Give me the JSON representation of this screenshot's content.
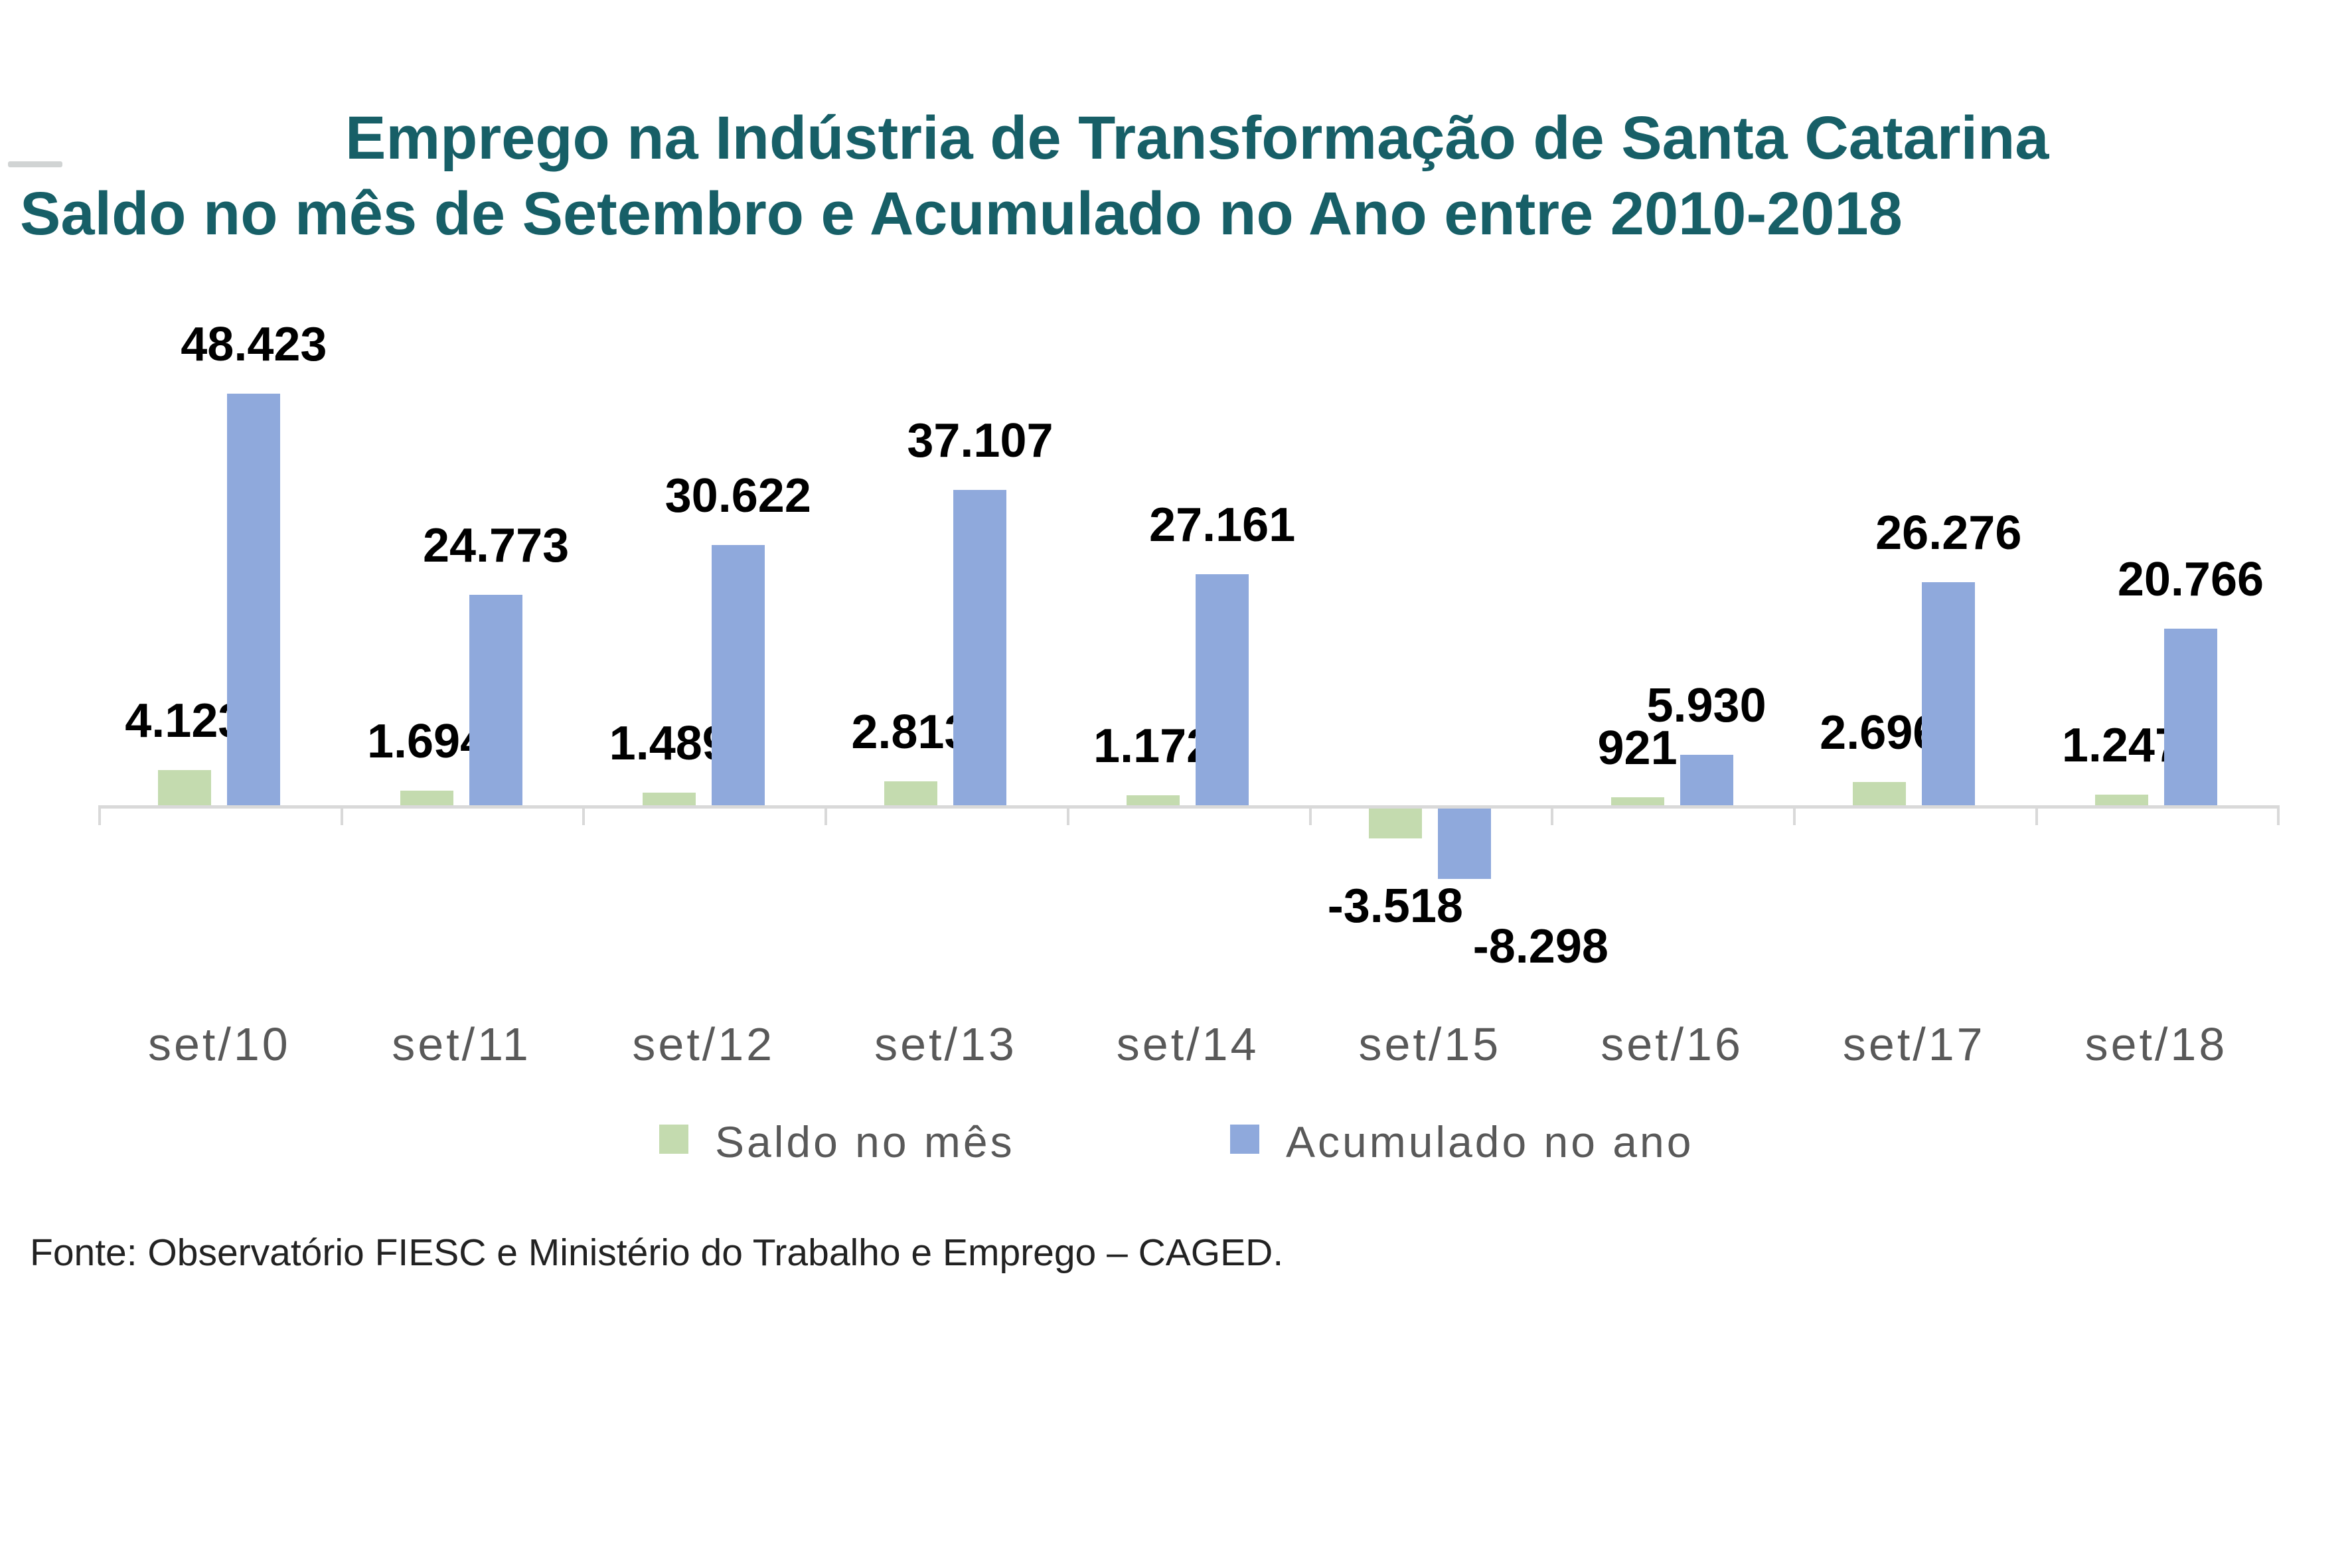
{
  "title": {
    "line1": "Emprego na Indústria de Transformação de Santa Catarina",
    "line2": "Saldo no mês de Setembro e Acumulado no Ano entre 2010-2018",
    "color": "#175F67"
  },
  "chart_data": {
    "type": "bar",
    "title": "Emprego na Indústria de Transformação de Santa Catarina",
    "subtitle": "Saldo no mês de Setembro e Acumulado no Ano entre 2010-2018",
    "categories": [
      "set/10",
      "set/11",
      "set/12",
      "set/13",
      "set/14",
      "set/15",
      "set/16",
      "set/17",
      "set/18"
    ],
    "series": [
      {
        "name": "Saldo no mês",
        "color": "#C4DBAF",
        "values": [
          4123,
          1694,
          1489,
          2813,
          1172,
          -3518,
          921,
          2696,
          1247
        ],
        "labels": [
          "4.123",
          "1.694",
          "1.489",
          "2.813",
          "1.172",
          "-3.518",
          "921",
          "2.696",
          "1.247"
        ]
      },
      {
        "name": "Acumulado no ano",
        "color": "#8FA9DC",
        "values": [
          48423,
          24773,
          30622,
          37107,
          27161,
          -8298,
          5930,
          26276,
          20766
        ],
        "labels": [
          "48.423",
          "24.773",
          "30.622",
          "37.107",
          "27.161",
          "-8.298",
          "5.930",
          "26.276",
          "20.766"
        ]
      }
    ],
    "data_labels": true,
    "grid": false,
    "value_axis_visible": false,
    "ylim": [
      -8298,
      48423
    ],
    "legend_position": "bottom",
    "axis_color": "#D9D9D9",
    "category_label_color": "#595959",
    "legend_label_color": "#595959",
    "data_label_color": "#000000"
  },
  "footer": {
    "source": "Fonte: Observatório FIESC e Ministério do Trabalho e Emprego – CAGED."
  }
}
